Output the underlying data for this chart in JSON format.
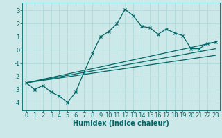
{
  "xlabel": "Humidex (Indice chaleur)",
  "background_color": "#cce8e8",
  "line_color": "#006666",
  "xlim": [
    -0.5,
    23.5
  ],
  "ylim": [
    -4.6,
    3.6
  ],
  "xticks": [
    0,
    1,
    2,
    3,
    4,
    5,
    6,
    7,
    8,
    9,
    10,
    11,
    12,
    13,
    14,
    15,
    16,
    17,
    18,
    19,
    20,
    21,
    22,
    23
  ],
  "yticks": [
    -4,
    -3,
    -2,
    -1,
    0,
    1,
    2,
    3
  ],
  "curve_x": [
    0,
    1,
    2,
    3,
    4,
    5,
    6,
    7,
    8,
    9,
    10,
    11,
    12,
    13,
    14,
    15,
    16,
    17,
    18,
    19,
    20,
    21,
    22,
    23
  ],
  "curve_y": [
    -2.5,
    -3.0,
    -2.7,
    -3.2,
    -3.5,
    -4.0,
    -3.2,
    -1.7,
    -0.3,
    1.0,
    1.4,
    2.0,
    3.1,
    2.6,
    1.8,
    1.7,
    1.2,
    1.6,
    1.3,
    1.1,
    0.1,
    0.1,
    0.5,
    0.6
  ],
  "line1_x": [
    0,
    23
  ],
  "line1_y": [
    -2.5,
    0.6
  ],
  "line2_x": [
    0,
    23
  ],
  "line2_y": [
    -2.5,
    0.1
  ],
  "line3_x": [
    0,
    23
  ],
  "line3_y": [
    -2.5,
    -0.4
  ],
  "grid_color": "#aad8d8",
  "xlabel_fontsize": 7,
  "tick_fontsize": 6
}
